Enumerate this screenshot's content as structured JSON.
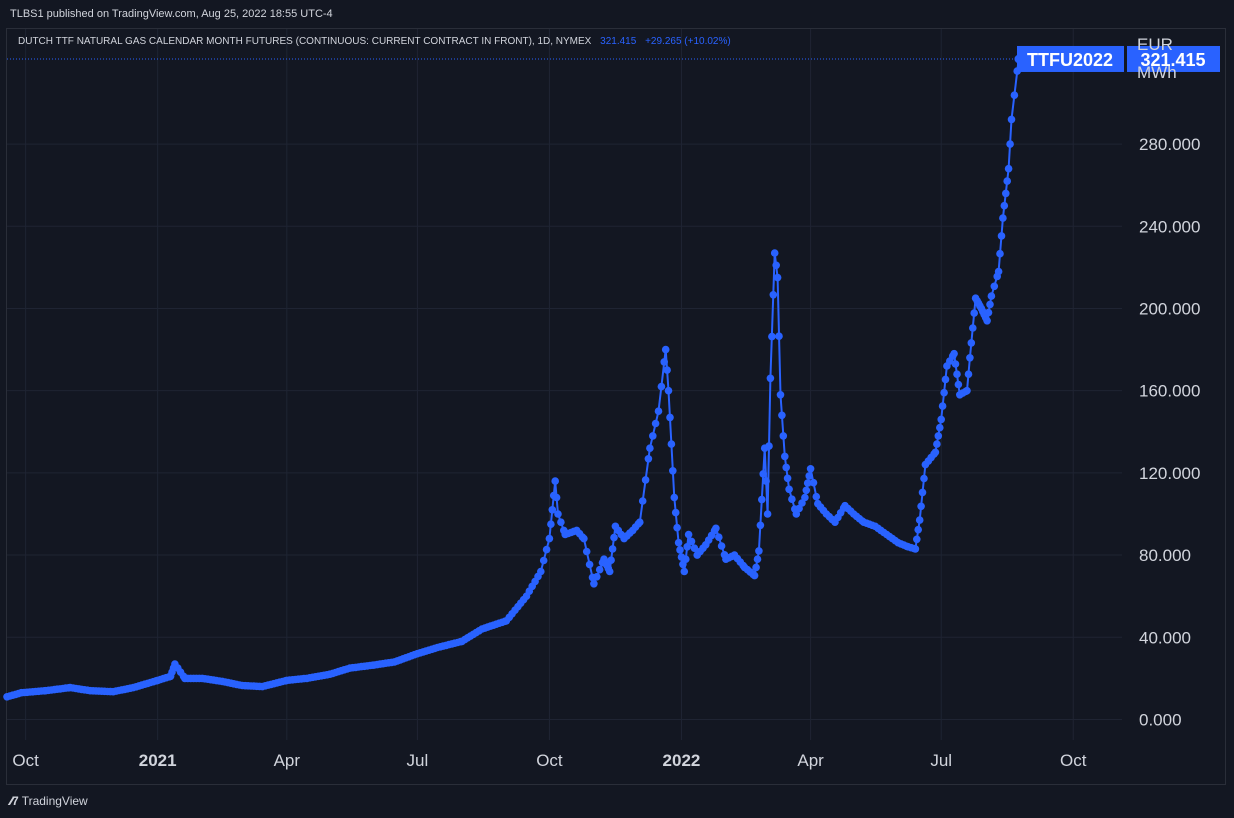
{
  "header": {
    "published": "TLBS1 published on TradingView.com, Aug 25, 2022 18:55 UTC-4"
  },
  "legend": {
    "title": "DUTCH TTF NATURAL GAS CALENDAR MONTH FUTURES (CONTINUOUS: CURRENT CONTRACT IN FRONT), 1D, NYMEX",
    "last": "321.415",
    "change": "+29.265 (+10.02%)"
  },
  "footer": {
    "brand": "TradingView"
  },
  "colors": {
    "background": "#131722",
    "line": "#2962ff",
    "grid": "#1f2433",
    "text": "#d1d4dc"
  },
  "chart_data": {
    "type": "line",
    "title": "DUTCH TTF NATURAL GAS CALENDAR MONTH FUTURES (CONTINUOUS: CURRENT CONTRACT IN FRONT), 1D, NYMEX",
    "ylabel": "EUR MWh",
    "ylabel_lines": [
      "EUR",
      "MWh"
    ],
    "ylim": [
      -10,
      336
    ],
    "xlim": [
      "2020-09-18",
      "2022-11-04"
    ],
    "grid": true,
    "y_ticks": [
      "0.000",
      "40.000",
      "80.000",
      "120.000",
      "160.000",
      "200.000",
      "240.000",
      "280.000"
    ],
    "y_tick_values": [
      0,
      40,
      80,
      120,
      160,
      200,
      240,
      280
    ],
    "x_ticks": [
      {
        "label": "Oct",
        "date": "2020-10-01",
        "major": false
      },
      {
        "label": "2021",
        "date": "2021-01-01",
        "major": true
      },
      {
        "label": "Apr",
        "date": "2021-04-01",
        "major": false
      },
      {
        "label": "Jul",
        "date": "2021-07-01",
        "major": false
      },
      {
        "label": "Oct",
        "date": "2021-10-01",
        "major": false
      },
      {
        "label": "2022",
        "date": "2022-01-01",
        "major": true
      },
      {
        "label": "Apr",
        "date": "2022-04-01",
        "major": false
      },
      {
        "label": "Jul",
        "date": "2022-07-01",
        "major": false
      },
      {
        "label": "Oct",
        "date": "2022-10-01",
        "major": false
      }
    ],
    "last_value_label": "321.415",
    "last_symbol_label": "TTFU2022",
    "series": [
      {
        "name": "TTFU2022",
        "points": [
          [
            "2020-09-18",
            11
          ],
          [
            "2020-09-28",
            13
          ],
          [
            "2020-10-15",
            14
          ],
          [
            "2020-11-01",
            15.5
          ],
          [
            "2020-11-15",
            14
          ],
          [
            "2020-12-01",
            13.5
          ],
          [
            "2020-12-15",
            15.5
          ],
          [
            "2021-01-01",
            19
          ],
          [
            "2021-01-10",
            21
          ],
          [
            "2021-01-13",
            27
          ],
          [
            "2021-01-20",
            20
          ],
          [
            "2021-02-01",
            20
          ],
          [
            "2021-02-15",
            18.5
          ],
          [
            "2021-03-01",
            16.5
          ],
          [
            "2021-03-15",
            16
          ],
          [
            "2021-04-01",
            19
          ],
          [
            "2021-04-15",
            20
          ],
          [
            "2021-05-01",
            22
          ],
          [
            "2021-05-15",
            25
          ],
          [
            "2021-06-01",
            26.5
          ],
          [
            "2021-06-15",
            28
          ],
          [
            "2021-07-01",
            32
          ],
          [
            "2021-07-15",
            35
          ],
          [
            "2021-08-01",
            38
          ],
          [
            "2021-08-15",
            44
          ],
          [
            "2021-09-01",
            48
          ],
          [
            "2021-09-15",
            60
          ],
          [
            "2021-09-25",
            72
          ],
          [
            "2021-10-01",
            88
          ],
          [
            "2021-10-05",
            116
          ],
          [
            "2021-10-07",
            100
          ],
          [
            "2021-10-12",
            90
          ],
          [
            "2021-10-20",
            92
          ],
          [
            "2021-10-25",
            88
          ],
          [
            "2021-11-01",
            66
          ],
          [
            "2021-11-08",
            78
          ],
          [
            "2021-11-12",
            72
          ],
          [
            "2021-11-16",
            94
          ],
          [
            "2021-11-22",
            88
          ],
          [
            "2021-11-28",
            92
          ],
          [
            "2021-12-03",
            96
          ],
          [
            "2021-12-10",
            132
          ],
          [
            "2021-12-16",
            150
          ],
          [
            "2021-12-21",
            180
          ],
          [
            "2021-12-23",
            160
          ],
          [
            "2021-12-27",
            108
          ],
          [
            "2021-12-30",
            86
          ],
          [
            "2022-01-03",
            72
          ],
          [
            "2022-01-06",
            90
          ],
          [
            "2022-01-12",
            80
          ],
          [
            "2022-01-18",
            85
          ],
          [
            "2022-01-25",
            93
          ],
          [
            "2022-02-01",
            78
          ],
          [
            "2022-02-07",
            80
          ],
          [
            "2022-02-14",
            74
          ],
          [
            "2022-02-21",
            70
          ],
          [
            "2022-02-24",
            82
          ],
          [
            "2022-02-28",
            132
          ],
          [
            "2022-03-02",
            100
          ],
          [
            "2022-03-04",
            166
          ],
          [
            "2022-03-07",
            227
          ],
          [
            "2022-03-09",
            215
          ],
          [
            "2022-03-11",
            158
          ],
          [
            "2022-03-14",
            128
          ],
          [
            "2022-03-17",
            112
          ],
          [
            "2022-03-22",
            100
          ],
          [
            "2022-03-28",
            108
          ],
          [
            "2022-04-01",
            122
          ],
          [
            "2022-04-06",
            105
          ],
          [
            "2022-04-12",
            100
          ],
          [
            "2022-04-18",
            96
          ],
          [
            "2022-04-25",
            104
          ],
          [
            "2022-05-01",
            100
          ],
          [
            "2022-05-08",
            96
          ],
          [
            "2022-05-16",
            94
          ],
          [
            "2022-05-24",
            90
          ],
          [
            "2022-06-01",
            86
          ],
          [
            "2022-06-08",
            84
          ],
          [
            "2022-06-13",
            83
          ],
          [
            "2022-06-16",
            97
          ],
          [
            "2022-06-20",
            124
          ],
          [
            "2022-06-27",
            130
          ],
          [
            "2022-07-01",
            146
          ],
          [
            "2022-07-05",
            172
          ],
          [
            "2022-07-10",
            178
          ],
          [
            "2022-07-14",
            158
          ],
          [
            "2022-07-19",
            160
          ],
          [
            "2022-07-21",
            176
          ],
          [
            "2022-07-25",
            205
          ],
          [
            "2022-07-29",
            200
          ],
          [
            "2022-08-02",
            194
          ],
          [
            "2022-08-05",
            206
          ],
          [
            "2022-08-10",
            218
          ],
          [
            "2022-08-13",
            244
          ],
          [
            "2022-08-17",
            268
          ],
          [
            "2022-08-19",
            292
          ],
          [
            "2022-08-24",
            321.415
          ]
        ]
      }
    ]
  }
}
